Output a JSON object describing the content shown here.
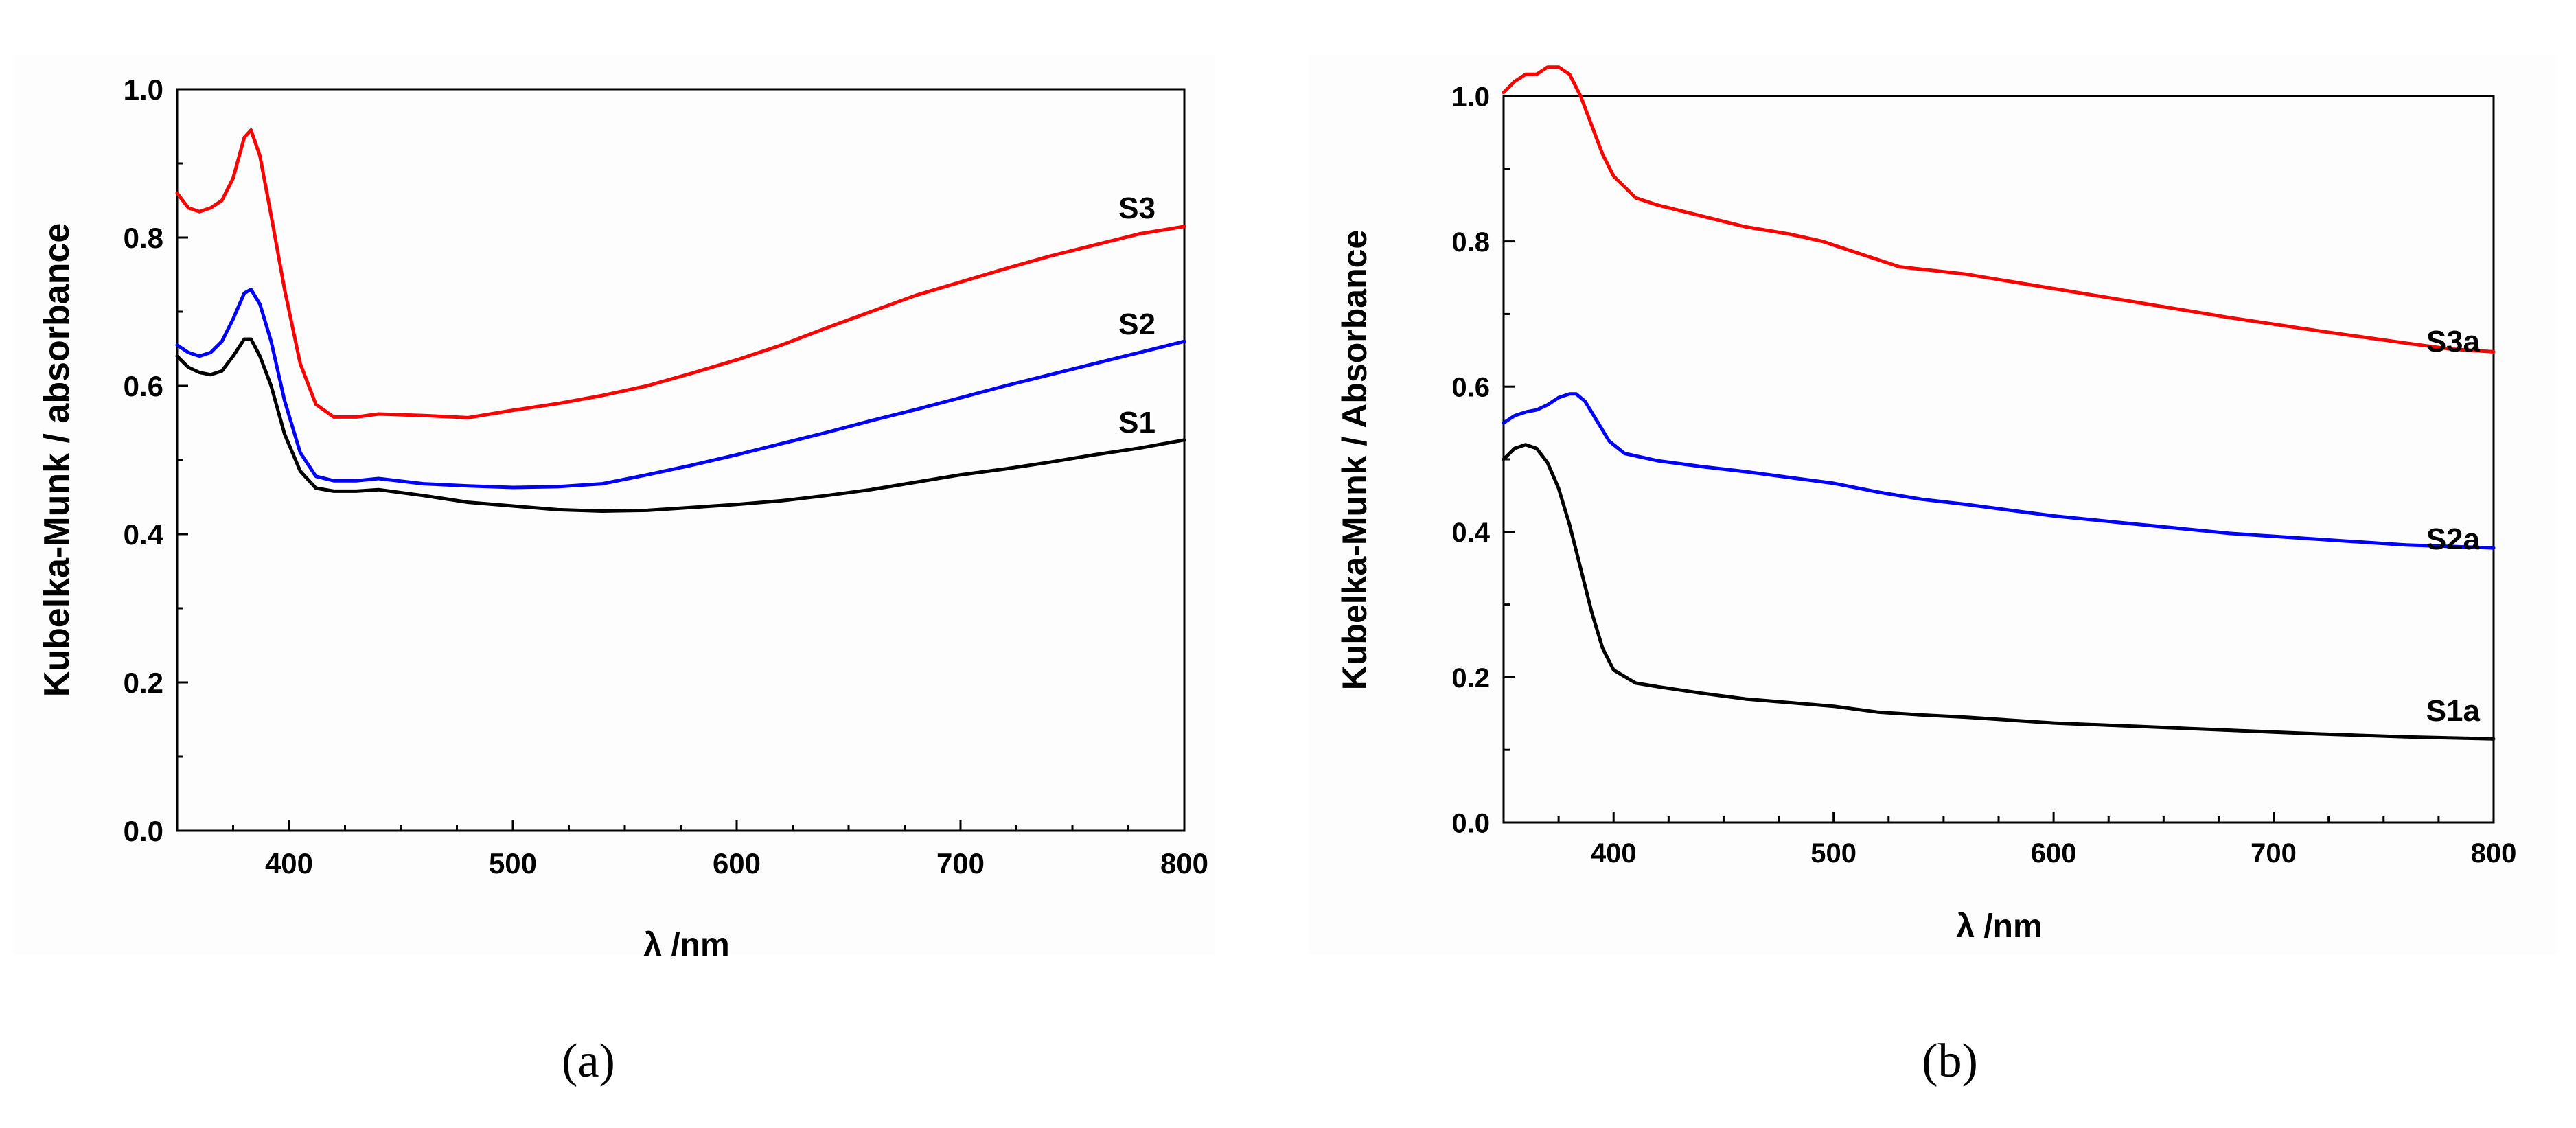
{
  "chart_data": [
    {
      "type": "line",
      "panel_label": "(a)",
      "title": "",
      "xlabel": "λ /nm",
      "ylabel": "Kubelka-Munk / absorbance",
      "xlim": [
        350,
        800
      ],
      "ylim": [
        0.0,
        1.0
      ],
      "x_ticks": [
        "400",
        "500",
        "600",
        "700",
        "800"
      ],
      "y_ticks": [
        "0.0",
        "0.2",
        "0.4",
        "0.6",
        "0.8",
        "1.0"
      ],
      "grid": false,
      "legend": "inline labels at right end of each curve",
      "series": [
        {
          "name": "S3",
          "color": "#ff0000",
          "points": [
            [
              350,
              0.86
            ],
            [
              355,
              0.84
            ],
            [
              360,
              0.835
            ],
            [
              365,
              0.84
            ],
            [
              370,
              0.85
            ],
            [
              375,
              0.88
            ],
            [
              380,
              0.935
            ],
            [
              383,
              0.945
            ],
            [
              387,
              0.91
            ],
            [
              392,
              0.83
            ],
            [
              398,
              0.73
            ],
            [
              405,
              0.63
            ],
            [
              412,
              0.575
            ],
            [
              420,
              0.558
            ],
            [
              430,
              0.558
            ],
            [
              440,
              0.562
            ],
            [
              460,
              0.56
            ],
            [
              480,
              0.557
            ],
            [
              500,
              0.567
            ],
            [
              520,
              0.576
            ],
            [
              540,
              0.587
            ],
            [
              560,
              0.6
            ],
            [
              580,
              0.617
            ],
            [
              600,
              0.635
            ],
            [
              620,
              0.655
            ],
            [
              640,
              0.678
            ],
            [
              660,
              0.7
            ],
            [
              680,
              0.722
            ],
            [
              700,
              0.74
            ],
            [
              720,
              0.758
            ],
            [
              740,
              0.775
            ],
            [
              760,
              0.79
            ],
            [
              780,
              0.805
            ],
            [
              800,
              0.815
            ]
          ]
        },
        {
          "name": "S2",
          "color": "#0000ff",
          "points": [
            [
              350,
              0.655
            ],
            [
              355,
              0.645
            ],
            [
              360,
              0.64
            ],
            [
              365,
              0.645
            ],
            [
              370,
              0.66
            ],
            [
              375,
              0.69
            ],
            [
              380,
              0.725
            ],
            [
              383,
              0.73
            ],
            [
              387,
              0.71
            ],
            [
              392,
              0.66
            ],
            [
              398,
              0.58
            ],
            [
              405,
              0.51
            ],
            [
              412,
              0.478
            ],
            [
              420,
              0.472
            ],
            [
              430,
              0.472
            ],
            [
              440,
              0.475
            ],
            [
              460,
              0.468
            ],
            [
              480,
              0.465
            ],
            [
              500,
              0.463
            ],
            [
              520,
              0.464
            ],
            [
              540,
              0.468
            ],
            [
              560,
              0.48
            ],
            [
              580,
              0.493
            ],
            [
              600,
              0.507
            ],
            [
              620,
              0.522
            ],
            [
              640,
              0.537
            ],
            [
              660,
              0.553
            ],
            [
              680,
              0.568
            ],
            [
              700,
              0.584
            ],
            [
              720,
              0.6
            ],
            [
              740,
              0.615
            ],
            [
              760,
              0.63
            ],
            [
              780,
              0.645
            ],
            [
              800,
              0.66
            ]
          ]
        },
        {
          "name": "S1",
          "color": "#000000",
          "points": [
            [
              350,
              0.64
            ],
            [
              355,
              0.625
            ],
            [
              360,
              0.618
            ],
            [
              365,
              0.615
            ],
            [
              370,
              0.62
            ],
            [
              375,
              0.64
            ],
            [
              380,
              0.663
            ],
            [
              383,
              0.663
            ],
            [
              387,
              0.64
            ],
            [
              392,
              0.6
            ],
            [
              398,
              0.535
            ],
            [
              405,
              0.485
            ],
            [
              412,
              0.462
            ],
            [
              420,
              0.458
            ],
            [
              430,
              0.458
            ],
            [
              440,
              0.46
            ],
            [
              460,
              0.452
            ],
            [
              480,
              0.443
            ],
            [
              500,
              0.438
            ],
            [
              520,
              0.433
            ],
            [
              540,
              0.431
            ],
            [
              560,
              0.432
            ],
            [
              580,
              0.436
            ],
            [
              600,
              0.44
            ],
            [
              620,
              0.445
            ],
            [
              640,
              0.452
            ],
            [
              660,
              0.46
            ],
            [
              680,
              0.47
            ],
            [
              700,
              0.48
            ],
            [
              720,
              0.488
            ],
            [
              740,
              0.497
            ],
            [
              760,
              0.507
            ],
            [
              780,
              0.516
            ],
            [
              800,
              0.527
            ]
          ]
        }
      ]
    },
    {
      "type": "line",
      "panel_label": "(b)",
      "title": "",
      "xlabel": "λ /nm",
      "ylabel": "Kubelka-Munk / Absorbance",
      "xlim": [
        350,
        800
      ],
      "ylim": [
        0.0,
        1.0
      ],
      "x_ticks": [
        "400",
        "500",
        "600",
        "700",
        "800"
      ],
      "y_ticks": [
        "0.0",
        "0.2",
        "0.4",
        "0.6",
        "0.8",
        "1.0"
      ],
      "grid": false,
      "legend": "inline labels above right end of each curve",
      "series": [
        {
          "name": "S3a",
          "color": "#ff0000",
          "points": [
            [
              350,
              1.005
            ],
            [
              355,
              1.02
            ],
            [
              360,
              1.03
            ],
            [
              365,
              1.03
            ],
            [
              370,
              1.04
            ],
            [
              375,
              1.04
            ],
            [
              380,
              1.03
            ],
            [
              385,
              1.0
            ],
            [
              390,
              0.96
            ],
            [
              395,
              0.92
            ],
            [
              400,
              0.89
            ],
            [
              410,
              0.86
            ],
            [
              420,
              0.85
            ],
            [
              440,
              0.835
            ],
            [
              460,
              0.82
            ],
            [
              480,
              0.81
            ],
            [
              495,
              0.8
            ],
            [
              510,
              0.785
            ],
            [
              530,
              0.765
            ],
            [
              560,
              0.755
            ],
            [
              600,
              0.735
            ],
            [
              640,
              0.715
            ],
            [
              680,
              0.695
            ],
            [
              720,
              0.677
            ],
            [
              760,
              0.66
            ],
            [
              780,
              0.652
            ],
            [
              800,
              0.648
            ]
          ]
        },
        {
          "name": "S2a",
          "color": "#0000ff",
          "points": [
            [
              350,
              0.55
            ],
            [
              355,
              0.56
            ],
            [
              360,
              0.565
            ],
            [
              365,
              0.568
            ],
            [
              370,
              0.575
            ],
            [
              375,
              0.585
            ],
            [
              380,
              0.59
            ],
            [
              383,
              0.59
            ],
            [
              387,
              0.58
            ],
            [
              392,
              0.555
            ],
            [
              398,
              0.525
            ],
            [
              405,
              0.508
            ],
            [
              420,
              0.498
            ],
            [
              440,
              0.49
            ],
            [
              460,
              0.483
            ],
            [
              480,
              0.475
            ],
            [
              500,
              0.467
            ],
            [
              520,
              0.455
            ],
            [
              540,
              0.445
            ],
            [
              560,
              0.438
            ],
            [
              580,
              0.43
            ],
            [
              600,
              0.422
            ],
            [
              640,
              0.41
            ],
            [
              680,
              0.398
            ],
            [
              720,
              0.39
            ],
            [
              760,
              0.382
            ],
            [
              800,
              0.378
            ]
          ]
        },
        {
          "name": "S1a",
          "color": "#000000",
          "points": [
            [
              350,
              0.5
            ],
            [
              355,
              0.515
            ],
            [
              360,
              0.52
            ],
            [
              365,
              0.515
            ],
            [
              370,
              0.495
            ],
            [
              375,
              0.46
            ],
            [
              380,
              0.41
            ],
            [
              385,
              0.35
            ],
            [
              390,
              0.29
            ],
            [
              395,
              0.24
            ],
            [
              400,
              0.21
            ],
            [
              410,
              0.192
            ],
            [
              420,
              0.187
            ],
            [
              440,
              0.178
            ],
            [
              460,
              0.17
            ],
            [
              480,
              0.165
            ],
            [
              500,
              0.16
            ],
            [
              520,
              0.152
            ],
            [
              540,
              0.148
            ],
            [
              560,
              0.145
            ],
            [
              600,
              0.137
            ],
            [
              640,
              0.132
            ],
            [
              680,
              0.127
            ],
            [
              720,
              0.122
            ],
            [
              760,
              0.118
            ],
            [
              800,
              0.115
            ]
          ]
        }
      ]
    }
  ]
}
